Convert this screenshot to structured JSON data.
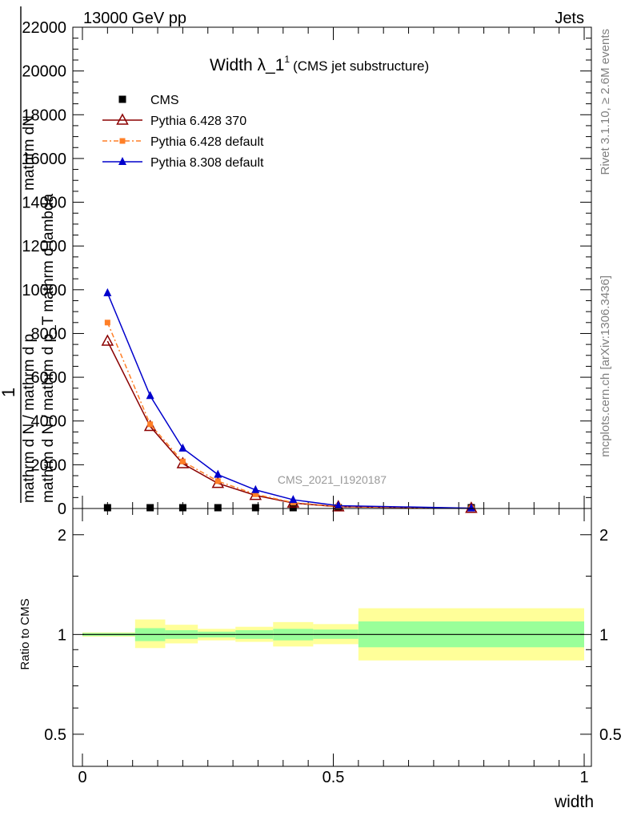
{
  "header": {
    "left": "13000 GeV pp",
    "right": "Jets"
  },
  "side_text": {
    "rivet": "Rivet 3.1.10, ≥ 2.6M events",
    "mcplots": "mcplots.cern.ch [arXiv:1306.3436]"
  },
  "colors": {
    "cms": "#000000",
    "pythia6_370": "#8b0000",
    "pythia6_default": "#ff7f27",
    "pythia8_default": "#0000cc",
    "band_inner": "#99ff99",
    "band_outer": "#ffff99"
  },
  "chart_data": [
    {
      "type": "line",
      "title_main": "Width λ_1",
      "title_sup": "1",
      "title_sub": "(CMS jet substructure)",
      "ylabel_num": "1",
      "ylabel_den_lines": [
        "mathrm d N / mathrm d p",
        "mathrm d N / mathrm d p_T mathrm d lambda",
        "mathrm dN"
      ],
      "ylabel_den_sub": "T",
      "ylabel_den_tail": "mathrm d lambda",
      "watermark": "CMS_2021_I1920187",
      "xlim": [
        0,
        1
      ],
      "ylim": [
        0,
        22000
      ],
      "yticks": [
        0,
        2000,
        4000,
        6000,
        8000,
        10000,
        12000,
        14000,
        16000,
        18000,
        20000,
        22000
      ],
      "ytick_labels": [
        "0",
        "2000",
        "4000",
        "6000",
        "8000",
        "10000",
        "12000",
        "14000",
        "16000",
        "18000",
        "20000",
        "22000"
      ],
      "legend_position": "top-left",
      "series": [
        {
          "name": "CMS",
          "marker": "square",
          "x": [
            0.05,
            0.135,
            0.2,
            0.27,
            0.345,
            0.42,
            0.51,
            0.775
          ],
          "y": [
            0,
            0,
            0,
            0,
            0,
            0,
            0,
            0
          ]
        },
        {
          "name": "Pythia 6.428 370",
          "marker": "open-triangle",
          "x": [
            0.05,
            0.135,
            0.2,
            0.27,
            0.345,
            0.42,
            0.51,
            0.775
          ],
          "y": [
            7650,
            3750,
            2050,
            1150,
            600,
            250,
            80,
            10
          ]
        },
        {
          "name": "Pythia 6.428 default",
          "marker": "small-square",
          "x": [
            0.05,
            0.135,
            0.2,
            0.27,
            0.345,
            0.42,
            0.51,
            0.775
          ],
          "y": [
            8500,
            3850,
            2150,
            1250,
            650,
            270,
            90,
            12
          ]
        },
        {
          "name": "Pythia 8.308 default",
          "marker": "filled-triangle",
          "x": [
            0.05,
            0.135,
            0.2,
            0.27,
            0.345,
            0.42,
            0.51,
            0.775
          ],
          "y": [
            9850,
            5150,
            2750,
            1550,
            850,
            400,
            130,
            15
          ]
        }
      ]
    },
    {
      "type": "area",
      "ylabel": "Ratio to CMS",
      "xlabel": "width",
      "xlim": [
        0,
        1
      ],
      "ylim": [
        0.4,
        2.4
      ],
      "scale": "log",
      "yticks": [
        0.5,
        1,
        2
      ],
      "ytick_labels": [
        "0.5",
        "1",
        "2"
      ],
      "xticks": [
        0,
        0.5,
        1
      ],
      "xtick_labels": [
        "0",
        "0.5",
        "1"
      ],
      "bins": [
        {
          "x_low": 0.0,
          "x_high": 0.105,
          "inner_low": 0.99,
          "inner_high": 1.01,
          "outer_low": 0.985,
          "outer_high": 1.015
        },
        {
          "x_low": 0.105,
          "x_high": 0.165,
          "inner_low": 0.955,
          "inner_high": 1.045,
          "outer_low": 0.91,
          "outer_high": 1.11
        },
        {
          "x_low": 0.165,
          "x_high": 0.23,
          "inner_low": 0.97,
          "inner_high": 1.03,
          "outer_low": 0.94,
          "outer_high": 1.07
        },
        {
          "x_low": 0.23,
          "x_high": 0.305,
          "inner_low": 0.98,
          "inner_high": 1.02,
          "outer_low": 0.96,
          "outer_high": 1.04
        },
        {
          "x_low": 0.305,
          "x_high": 0.38,
          "inner_low": 0.97,
          "inner_high": 1.03,
          "outer_low": 0.95,
          "outer_high": 1.055
        },
        {
          "x_low": 0.38,
          "x_high": 0.46,
          "inner_low": 0.96,
          "inner_high": 1.04,
          "outer_low": 0.92,
          "outer_high": 1.09
        },
        {
          "x_low": 0.46,
          "x_high": 0.55,
          "inner_low": 0.97,
          "inner_high": 1.035,
          "outer_low": 0.935,
          "outer_high": 1.075
        },
        {
          "x_low": 0.55,
          "x_high": 1.0,
          "inner_low": 0.915,
          "inner_high": 1.095,
          "outer_low": 0.835,
          "outer_high": 1.2
        }
      ]
    }
  ]
}
